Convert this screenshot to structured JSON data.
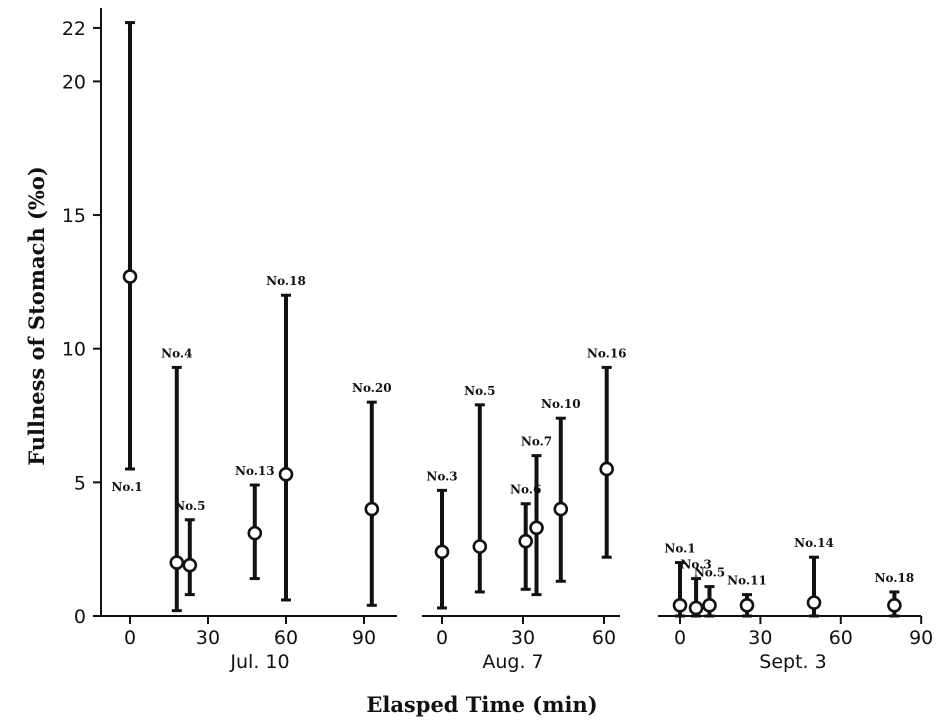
{
  "chart_data": {
    "type": "scatter",
    "ylabel": "Fullness of Stomach (%o)",
    "xlabel": "Elasped Time (min)",
    "ylim": [
      0,
      22
    ],
    "yticks": [
      {
        "value": 0,
        "label": "0"
      },
      {
        "value": 5,
        "label": "5"
      },
      {
        "value": 10,
        "label": "10"
      },
      {
        "value": 15,
        "label": "15"
      },
      {
        "value": 20,
        "label": "20"
      },
      {
        "value": 22,
        "label": "22"
      }
    ],
    "panels": [
      {
        "name": "Jul. 10",
        "xticks": [
          0,
          30,
          60,
          90
        ],
        "xtick_labels": [
          "0",
          "30",
          "60",
          "90"
        ],
        "points": [
          {
            "label": "No.1",
            "x": 0,
            "y": 12.7,
            "low": 5.5,
            "high": 22.2
          },
          {
            "label": "No.4",
            "x": 18,
            "y": 2.0,
            "low": 0.2,
            "high": 9.3
          },
          {
            "label": "No.5",
            "x": 23,
            "y": 1.9,
            "low": 0.8,
            "high": 3.6
          },
          {
            "label": "No.13",
            "x": 48,
            "y": 3.1,
            "low": 1.4,
            "high": 4.9
          },
          {
            "label": "No.18",
            "x": 60,
            "y": 5.3,
            "low": 0.6,
            "high": 12.0
          },
          {
            "label": "No.20",
            "x": 93,
            "y": 4.0,
            "low": 0.4,
            "high": 8.0
          }
        ]
      },
      {
        "name": "Aug. 7",
        "xticks": [
          0,
          30,
          60
        ],
        "xtick_labels": [
          "0",
          "30",
          "60"
        ],
        "points": [
          {
            "label": "No.3",
            "x": 0,
            "y": 2.4,
            "low": 0.3,
            "high": 4.7
          },
          {
            "label": "No.5",
            "x": 14,
            "y": 2.6,
            "low": 0.9,
            "high": 7.9
          },
          {
            "label": "No.6",
            "x": 31,
            "y": 2.8,
            "low": 1.0,
            "high": 4.2
          },
          {
            "label": "No.7",
            "x": 35,
            "y": 3.3,
            "low": 0.8,
            "high": 6.0
          },
          {
            "label": "No.10",
            "x": 44,
            "y": 4.0,
            "low": 1.3,
            "high": 7.4
          },
          {
            "label": "No.16",
            "x": 61,
            "y": 5.5,
            "low": 2.2,
            "high": 9.3
          }
        ]
      },
      {
        "name": "Sept. 3",
        "xticks": [
          0,
          30,
          60,
          90
        ],
        "xtick_labels": [
          "0",
          "30",
          "60",
          "90"
        ],
        "points": [
          {
            "label": "No.1",
            "x": 0,
            "y": 0.4,
            "low": 0.0,
            "high": 2.0
          },
          {
            "label": "No.3",
            "x": 6,
            "y": 0.3,
            "low": 0.0,
            "high": 1.4
          },
          {
            "label": "No.5",
            "x": 11,
            "y": 0.4,
            "low": 0.0,
            "high": 1.1
          },
          {
            "label": "No.11",
            "x": 25,
            "y": 0.4,
            "low": 0.0,
            "high": 0.8
          },
          {
            "label": "No.14",
            "x": 50,
            "y": 0.5,
            "low": 0.0,
            "high": 2.2
          },
          {
            "label": "No.18",
            "x": 80,
            "y": 0.4,
            "low": 0.0,
            "high": 0.9
          }
        ]
      }
    ]
  }
}
